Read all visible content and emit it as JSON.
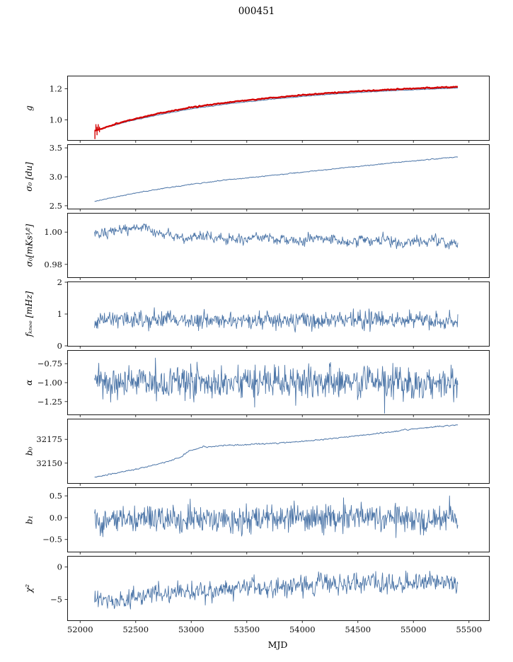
{
  "title": "000451",
  "xlabel": "MJD",
  "xlim": [
    51890,
    55680
  ],
  "x_tick_values": [
    52000,
    52500,
    53000,
    53500,
    54000,
    54500,
    55000,
    55500
  ],
  "x_tick_labels": [
    "52000",
    "52500",
    "53000",
    "53500",
    "54000",
    "54500",
    "55000",
    "55500"
  ],
  "colors": {
    "line": "#4d76a8",
    "accent_red": "#d40000",
    "axis": "#1a1a1a"
  },
  "chart_data": [
    {
      "name": "gain",
      "type": "line",
      "ylabel": "g",
      "ylim": [
        0.87,
        1.28
      ],
      "ytick_values": [
        1.0,
        1.2
      ],
      "ytick_labels": [
        "1.0",
        "1.2"
      ],
      "series": [
        {
          "name": "gain-smooth-blue",
          "color": "#4d76a8",
          "width": 1.0,
          "n": 450,
          "x_start": 52130,
          "x_end": 55400,
          "kx": [
            52130,
            52250,
            52450,
            52700,
            53000,
            53350,
            53700,
            54100,
            54500,
            54900,
            55400
          ],
          "ky": [
            0.93,
            0.955,
            0.993,
            1.032,
            1.071,
            1.105,
            1.131,
            1.157,
            1.176,
            1.191,
            1.205
          ],
          "noise": 0.0012,
          "ar": 0.2,
          "seed": 11
        },
        {
          "name": "gain-measured-red",
          "color": "#d40000",
          "width": 2.4,
          "n": 320,
          "x_start": 52130,
          "x_end": 55400,
          "kx": [
            52130,
            52250,
            52450,
            52700,
            53000,
            53350,
            53700,
            54100,
            54500,
            54900,
            55400
          ],
          "ky": [
            0.928,
            0.958,
            0.999,
            1.04,
            1.08,
            1.114,
            1.141,
            1.166,
            1.185,
            1.199,
            1.212
          ],
          "noise": 0.0018,
          "ar": 0.1,
          "seed": 12,
          "errorbars": {
            "x": [
              52133,
              52142,
              52152,
              52163,
              52174
            ],
            "y": [
              0.906,
              0.95,
              0.928,
              0.952,
              0.938
            ],
            "err": [
              0.03,
              0.022,
              0.027,
              0.02,
              0.018
            ]
          }
        }
      ]
    },
    {
      "name": "sigma0-du",
      "type": "line",
      "ylabel": "σ₀ [du]",
      "ylim": [
        2.45,
        3.55
      ],
      "ytick_values": [
        2.5,
        3.0,
        3.5
      ],
      "ytick_labels": [
        "2.5",
        "3.0",
        "3.5"
      ],
      "series": [
        {
          "name": "sigma0-du-curve",
          "color": "#4d76a8",
          "width": 1.0,
          "n": 500,
          "x_start": 52130,
          "x_end": 55400,
          "kx": [
            52130,
            52300,
            52500,
            52750,
            53000,
            53300,
            53650,
            54000,
            54400,
            54800,
            55400
          ],
          "ky": [
            2.575,
            2.645,
            2.72,
            2.8,
            2.87,
            2.945,
            3.01,
            3.08,
            3.16,
            3.24,
            3.345
          ],
          "noise": 0.004,
          "ar": 0.3,
          "seed": 21
        }
      ]
    },
    {
      "name": "sigma0-mks",
      "type": "line",
      "ylabel": "σ₀[mKs¹⁄²]",
      "ylim": [
        0.972,
        1.0115
      ],
      "ytick_values": [
        0.98,
        1.0
      ],
      "ytick_labels": [
        "0.98",
        "1.00"
      ],
      "series": [
        {
          "name": "sigma0-mks-noisy",
          "color": "#4d76a8",
          "width": 0.9,
          "n": 700,
          "x_start": 52130,
          "x_end": 55400,
          "kx": [
            52130,
            52350,
            52550,
            52750,
            52950,
            53150,
            53400,
            53650,
            53900,
            54150,
            54400,
            54650,
            54900,
            55150,
            55400
          ],
          "ky": [
            0.999,
            1.001,
            1.004,
            0.999,
            0.9955,
            0.998,
            0.9945,
            0.9975,
            0.994,
            0.9965,
            0.9935,
            0.996,
            0.9925,
            0.9955,
            0.993
          ],
          "noise": 0.0016,
          "ar": 0.35,
          "seed": 31
        }
      ]
    },
    {
      "name": "fknee",
      "type": "line",
      "ylabel": "fₖₙₑₑ [mHz]",
      "ylim": [
        0,
        2
      ],
      "ytick_values": [
        0,
        1,
        2
      ],
      "ytick_labels": [
        "0",
        "1",
        "2"
      ],
      "series": [
        {
          "name": "fknee-noisy",
          "color": "#4d76a8",
          "width": 0.9,
          "n": 700,
          "x_start": 52130,
          "x_end": 55400,
          "kx": [
            52130,
            53500,
            55400
          ],
          "ky": [
            0.82,
            0.81,
            0.8
          ],
          "noise": 0.13,
          "ar": 0.1,
          "seed": 41
        }
      ]
    },
    {
      "name": "alpha",
      "type": "line",
      "ylabel": "α",
      "ylim": [
        -1.42,
        -0.58
      ],
      "ytick_values": [
        -0.75,
        -1.0,
        -1.25
      ],
      "ytick_labels": [
        "−0.75",
        "−1.00",
        "−1.25"
      ],
      "series": [
        {
          "name": "alpha-noisy",
          "color": "#4d76a8",
          "width": 0.9,
          "n": 700,
          "x_start": 52130,
          "x_end": 55400,
          "kx": [
            52130,
            53700,
            55400
          ],
          "ky": [
            -1.0,
            -1.0,
            -1.0
          ],
          "noise": 0.115,
          "ar": 0.05,
          "seed": 51
        }
      ]
    },
    {
      "name": "b0",
      "type": "line",
      "ylabel": "b₀",
      "ylim": [
        32129,
        32196
      ],
      "ytick_values": [
        32150,
        32175
      ],
      "ytick_labels": [
        "32150",
        "32175"
      ],
      "series": [
        {
          "name": "b0-trend",
          "color": "#4d76a8",
          "width": 1.0,
          "n": 600,
          "x_start": 52130,
          "x_end": 55400,
          "kx": [
            52130,
            52350,
            52600,
            52800,
            52900,
            52980,
            53100,
            53400,
            53800,
            54200,
            54600,
            55000,
            55400
          ],
          "ky": [
            32135.5,
            32140,
            32146,
            32152,
            32156,
            32163,
            32167,
            32169,
            32171,
            32175,
            32180,
            32186,
            32190.5
          ],
          "noise": 0.3,
          "ar": 0.5,
          "seed": 61
        }
      ]
    },
    {
      "name": "b1",
      "type": "line",
      "ylabel": "b₁",
      "ylim": [
        -0.78,
        0.68
      ],
      "ytick_values": [
        0.5,
        0.0,
        -0.5
      ],
      "ytick_labels": [
        "0.5",
        "0.0",
        "−0.5"
      ],
      "series": [
        {
          "name": "b1-noisy",
          "color": "#4d76a8",
          "width": 0.9,
          "n": 700,
          "x_start": 52130,
          "x_end": 55400,
          "kx": [
            52130,
            53000,
            54000,
            55400
          ],
          "ky": [
            -0.05,
            -0.02,
            0.0,
            0.0
          ],
          "noise": 0.16,
          "ar": 0.05,
          "seed": 71
        }
      ]
    },
    {
      "name": "chi2",
      "type": "line",
      "ylabel": "χ²",
      "ylim": [
        -8.2,
        1.6
      ],
      "ytick_values": [
        0,
        -5
      ],
      "ytick_labels": [
        "0",
        "−5"
      ],
      "show_xtick_labels": true,
      "series": [
        {
          "name": "chi2-noisy",
          "color": "#4d76a8",
          "width": 0.9,
          "n": 700,
          "x_start": 52130,
          "x_end": 55400,
          "kx": [
            52130,
            52350,
            52600,
            52900,
            53300,
            53800,
            54300,
            54800,
            55400
          ],
          "ky": [
            -4.9,
            -5.1,
            -4.4,
            -3.9,
            -3.4,
            -3.0,
            -2.7,
            -2.45,
            -2.2
          ],
          "noise": 0.75,
          "ar": 0.2,
          "seed": 81
        }
      ]
    }
  ]
}
